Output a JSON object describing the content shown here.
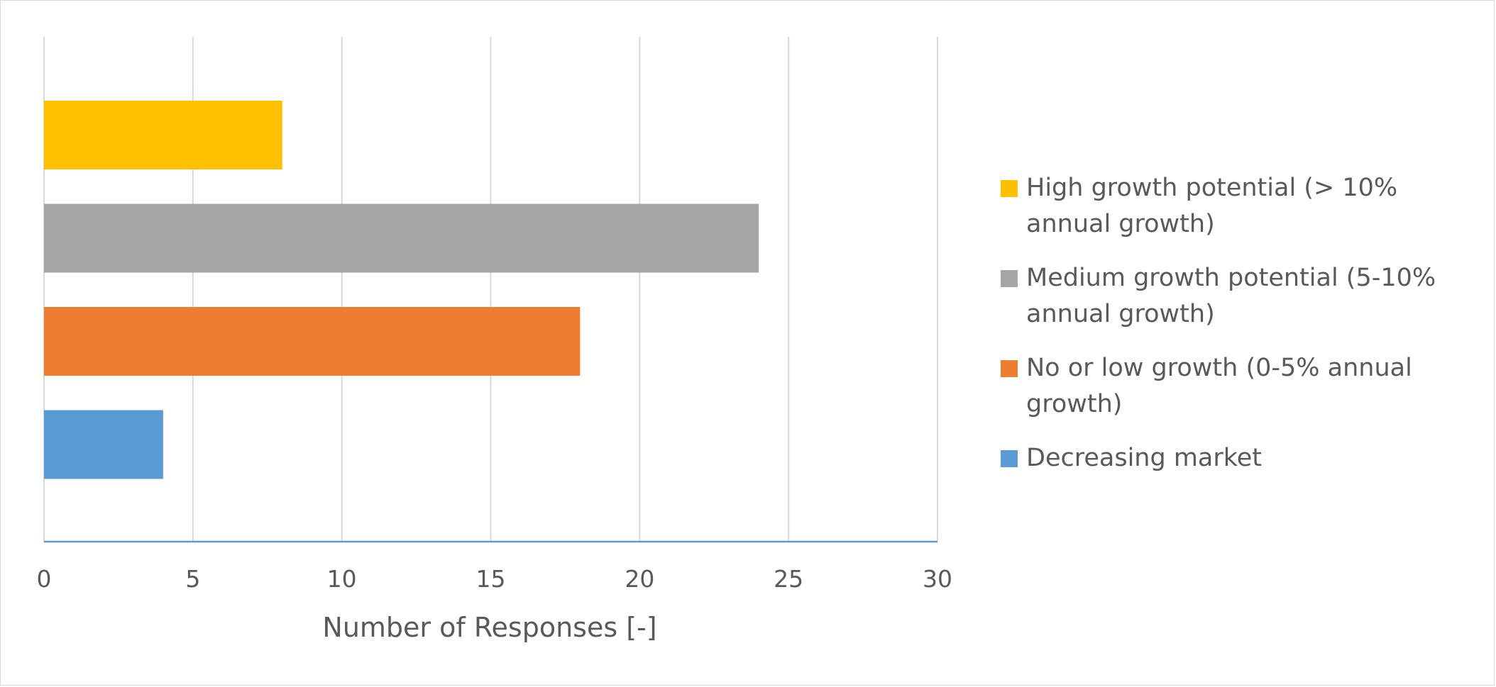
{
  "chart_data": {
    "type": "bar",
    "orientation": "horizontal",
    "categories": [
      "High growth potential (> 10% annual growth)",
      "Medium growth potential (5-10% annual growth)",
      "No or low growth (0-5% annual growth)",
      "Decreasing market"
    ],
    "values": [
      8,
      24,
      18,
      4
    ],
    "colors": [
      "#FFC000",
      "#A5A5A5",
      "#ED7D31",
      "#5B9BD5"
    ],
    "title": "",
    "xlabel": "Number of Responses [-]",
    "ylabel": "",
    "xlim": [
      0,
      30
    ],
    "xticks": [
      0,
      5,
      10,
      15,
      20,
      25,
      30
    ],
    "xtick_labels": [
      "0",
      "5",
      "10",
      "15",
      "20",
      "25",
      "30"
    ],
    "grid": "vertical",
    "legend_position": "right",
    "colors_ui": {
      "grid": "#d9d9d9",
      "axis": "#5b9bd5",
      "text": "#595959"
    }
  }
}
